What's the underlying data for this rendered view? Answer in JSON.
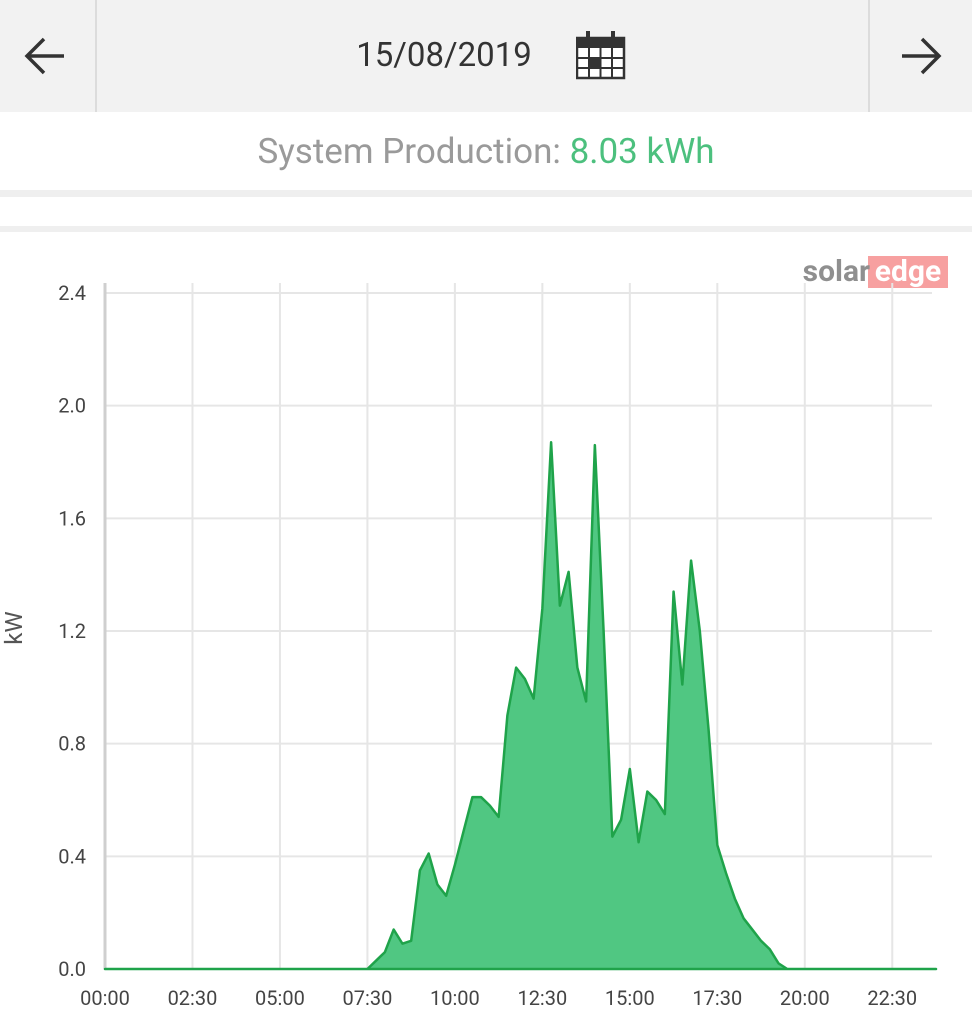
{
  "header": {
    "date": "15/08/2019"
  },
  "summary": {
    "label": "System Production:",
    "value": "8.03 kWh"
  },
  "logo": {
    "part1": "solar",
    "part2": "edge"
  },
  "chart_data": {
    "type": "area",
    "y_label": "kW",
    "color": "#4cc680",
    "line_color": "#1fa34a",
    "grid": true,
    "x": [
      0,
      7.5,
      7.75,
      8,
      8.25,
      8.5,
      8.75,
      9,
      9.25,
      9.5,
      9.75,
      10,
      10.25,
      10.5,
      10.75,
      11,
      11.25,
      11.5,
      11.75,
      12,
      12.25,
      12.5,
      12.75,
      13,
      13.25,
      13.5,
      13.75,
      14,
      14.25,
      14.5,
      14.75,
      15,
      15.25,
      15.5,
      15.75,
      16,
      16.25,
      16.5,
      16.75,
      17,
      17.25,
      17.5,
      17.75,
      18,
      18.25,
      18.5,
      18.75,
      19,
      19.25,
      19.5,
      23.75
    ],
    "values": [
      0,
      0,
      0.03,
      0.06,
      0.14,
      0.09,
      0.1,
      0.35,
      0.41,
      0.3,
      0.26,
      0.37,
      0.49,
      0.61,
      0.61,
      0.58,
      0.54,
      0.9,
      1.07,
      1.03,
      0.96,
      1.28,
      1.87,
      1.29,
      1.41,
      1.07,
      0.95,
      1.86,
      1.2,
      0.47,
      0.53,
      0.71,
      0.45,
      0.63,
      0.6,
      0.55,
      1.34,
      1.01,
      1.45,
      1.2,
      0.85,
      0.44,
      0.34,
      0.25,
      0.18,
      0.14,
      0.1,
      0.07,
      0.02,
      0,
      0
    ],
    "xlim": [
      0,
      23.75
    ],
    "xticks": [
      {
        "value": 0,
        "label": "00:00"
      },
      {
        "value": 2.5,
        "label": "02:30"
      },
      {
        "value": 5,
        "label": "05:00"
      },
      {
        "value": 7.5,
        "label": "07:30"
      },
      {
        "value": 10,
        "label": "10:00"
      },
      {
        "value": 12.5,
        "label": "12:30"
      },
      {
        "value": 15,
        "label": "15:00"
      },
      {
        "value": 17.5,
        "label": "17:30"
      },
      {
        "value": 20,
        "label": "20:00"
      },
      {
        "value": 22.5,
        "label": "22:30"
      }
    ],
    "ylim": [
      0,
      2.4
    ],
    "yticks": [
      {
        "value": 0,
        "label": "0.0"
      },
      0.4,
      0.8,
      1.2,
      1.6,
      {
        "value": 2,
        "label": "2.0"
      },
      2.4
    ]
  }
}
